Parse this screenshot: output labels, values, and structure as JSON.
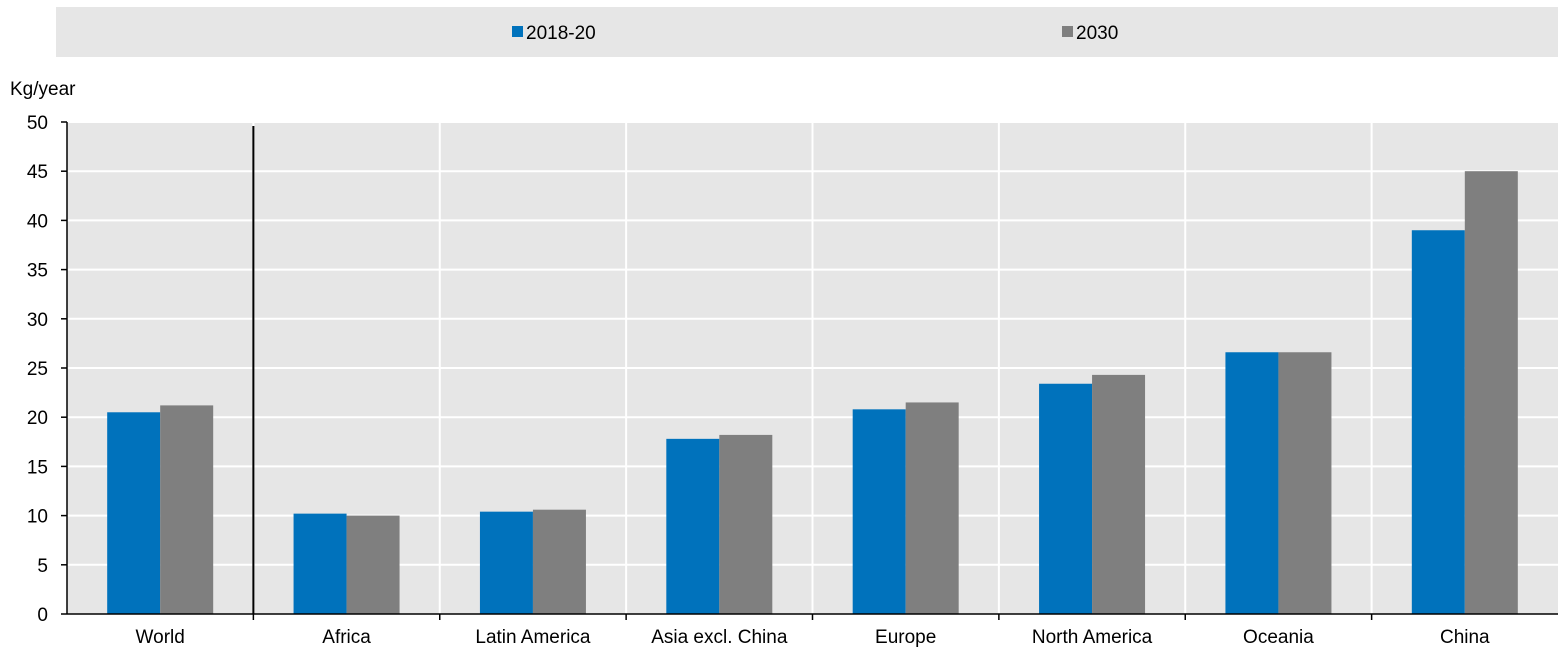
{
  "chart_data": {
    "type": "bar",
    "unit_label": "Kg/year",
    "categories": [
      "World",
      "Africa",
      "Latin America",
      "Asia excl. China",
      "Europe",
      "North America",
      "Oceania",
      "China"
    ],
    "series": [
      {
        "name": "2018-20",
        "color": "#0072BC",
        "values": [
          20.5,
          10.2,
          10.4,
          17.8,
          20.8,
          23.4,
          26.6,
          39.0
        ]
      },
      {
        "name": "2030",
        "color": "#7F7F7F",
        "values": [
          21.2,
          10.0,
          10.6,
          18.2,
          21.5,
          24.3,
          26.6,
          45.0
        ]
      }
    ],
    "ylim": [
      0,
      50
    ],
    "yticks": [
      0,
      5,
      10,
      15,
      20,
      25,
      30,
      35,
      40,
      45,
      50
    ],
    "grid": true,
    "legend_position": "top",
    "separator_after": "World"
  }
}
